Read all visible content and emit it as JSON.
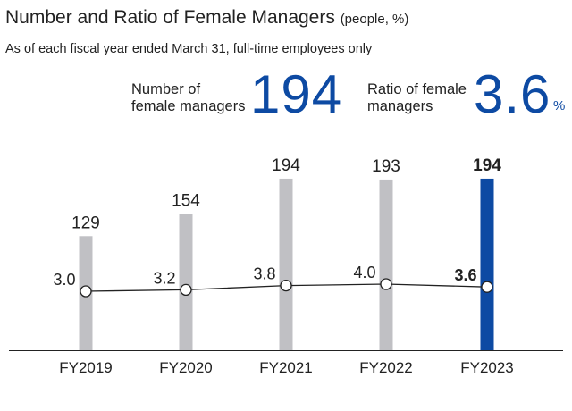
{
  "header": {
    "title": "Number and Ratio of Female Managers",
    "title_unit": "(people, %)",
    "subtitle": "As of each fiscal year ended March 31, full-time employees only"
  },
  "kpis": {
    "count": {
      "label": "Number of\nfemale managers",
      "value": "194"
    },
    "ratio": {
      "label": "Ratio of female\nmanagers",
      "value": "3.6",
      "unit": "%"
    }
  },
  "colors": {
    "bar": "#c0c0c4",
    "highlight_bar": "#0d4aa3",
    "line": "#222222",
    "text": "#222222"
  },
  "chart_data": {
    "type": "bar",
    "title": "Number and Ratio of Female Managers",
    "categories": [
      "FY2019",
      "FY2020",
      "FY2021",
      "FY2022",
      "FY2023"
    ],
    "ylim": [
      0,
      200
    ],
    "highlight_index": 4,
    "series": [
      {
        "type": "bar",
        "values": [
          129,
          154,
          194,
          193,
          194
        ],
        "labels": [
          "129",
          "154",
          "194",
          "193",
          "194"
        ]
      },
      {
        "type": "line",
        "values": [
          3.0,
          3.2,
          3.8,
          4.0,
          3.6
        ],
        "labels": [
          "3.0",
          "3.2",
          "3.8",
          "4.0",
          "3.6"
        ]
      }
    ]
  }
}
